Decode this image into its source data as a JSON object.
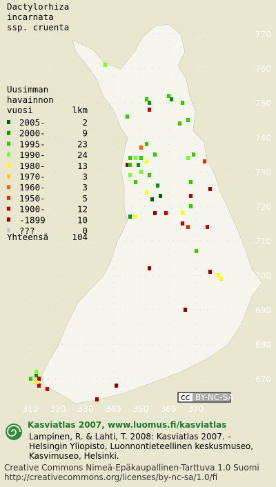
{
  "title": [
    "Dactylorhiza",
    "incarnata",
    "ssp. cruenta"
  ],
  "legend": {
    "heading": [
      "Uusimman",
      "havainnon",
      "vuosi"
    ],
    "count_heading": "lkm",
    "items": [
      {
        "label": "2005-",
        "count": 2,
        "color": "#006400"
      },
      {
        "label": "2000-",
        "count": 9,
        "color": "#009900"
      },
      {
        "label": "1995-",
        "count": 23,
        "color": "#33cc00"
      },
      {
        "label": "1990-",
        "count": 24,
        "color": "#77ff22"
      },
      {
        "label": "1980-",
        "count": 13,
        "color": "#ffff00"
      },
      {
        "label": "1970-",
        "count": 3,
        "color": "#ffcc00"
      },
      {
        "label": "1960-",
        "count": 3,
        "color": "#ff6600"
      },
      {
        "label": "1950-",
        "count": 5,
        "color": "#dd3300"
      },
      {
        "label": "1900-",
        "count": 12,
        "color": "#cc0000"
      },
      {
        "label": "-1899",
        "count": 10,
        "color": "#990000"
      },
      {
        "label": "???",
        "count": 0,
        "color": "#cccccc"
      }
    ],
    "total_label": "Yhteensä",
    "total": 104
  },
  "grid": {
    "yticks": [
      770,
      760,
      750,
      740,
      730,
      720,
      710,
      700,
      690,
      680,
      670
    ],
    "xticks": [
      310,
      320,
      330,
      340,
      350,
      360,
      370
    ]
  },
  "points": [
    [
      337,
      761,
      3
    ],
    [
      352,
      751,
      2
    ],
    [
      353,
      750,
      1
    ],
    [
      360,
      752,
      2
    ],
    [
      361,
      751,
      1
    ],
    [
      353,
      748,
      8
    ],
    [
      345,
      746,
      2
    ],
    [
      365,
      750,
      2
    ],
    [
      364,
      744,
      2
    ],
    [
      367,
      745,
      2
    ],
    [
      350,
      737,
      6
    ],
    [
      345,
      732,
      9
    ],
    [
      346,
      734,
      2
    ],
    [
      348,
      734,
      3
    ],
    [
      350,
      734,
      2
    ],
    [
      346,
      732,
      2
    ],
    [
      349,
      732,
      1
    ],
    [
      352,
      733,
      4
    ],
    [
      346,
      729,
      3
    ],
    [
      348,
      727,
      2
    ],
    [
      350,
      730,
      3
    ],
    [
      353,
      729,
      2
    ],
    [
      355,
      735,
      2
    ],
    [
      356,
      726,
      1
    ],
    [
      352,
      724,
      4
    ],
    [
      354,
      722,
      0
    ],
    [
      357,
      723,
      0
    ],
    [
      367,
      734,
      3
    ],
    [
      369,
      735,
      2
    ],
    [
      373,
      733,
      7
    ],
    [
      368,
      727,
      2
    ],
    [
      375,
      725,
      9
    ],
    [
      368,
      723,
      8
    ],
    [
      368,
      720,
      2
    ],
    [
      346,
      717,
      1
    ],
    [
      348,
      717,
      4
    ],
    [
      355,
      718,
      9
    ],
    [
      359,
      718,
      8
    ],
    [
      365,
      718,
      4
    ],
    [
      365,
      715,
      8
    ],
    [
      367,
      714,
      7
    ],
    [
      374,
      714,
      8
    ],
    [
      370,
      707,
      2
    ],
    [
      353,
      702,
      9
    ],
    [
      375,
      701,
      9
    ],
    [
      378,
      700,
      4
    ],
    [
      379,
      699,
      4
    ],
    [
      366,
      690,
      9
    ],
    [
      310,
      670,
      2
    ],
    [
      312,
      671,
      1
    ],
    [
      312,
      672,
      3
    ],
    [
      313,
      670,
      8
    ],
    [
      313,
      668,
      8
    ],
    [
      316,
      667,
      8
    ],
    [
      312,
      669,
      4
    ],
    [
      341,
      668,
      9
    ],
    [
      334,
      664,
      9
    ],
    [
      352,
      738,
      2
    ]
  ],
  "badge": "BY-NC-SA",
  "footer": {
    "heading": "Kasviatlas 2007, www.luomus.fi/kasviatlas",
    "citation": [
      "Lampinen, R. & Lahti, T. 2008: Kasviatlas 2007. –",
      "Helsingin Yliopisto, Luonnontieteellinen keskusmuseo,",
      "Kasvimuseo, Helsinki."
    ],
    "license": [
      "Creative Commons Nimeä-Epäkaupallinen-Tarttuva 1.0 Suomi",
      "http://creativecommons.org/licenses/by-nc-sa/1.0/fi"
    ]
  }
}
